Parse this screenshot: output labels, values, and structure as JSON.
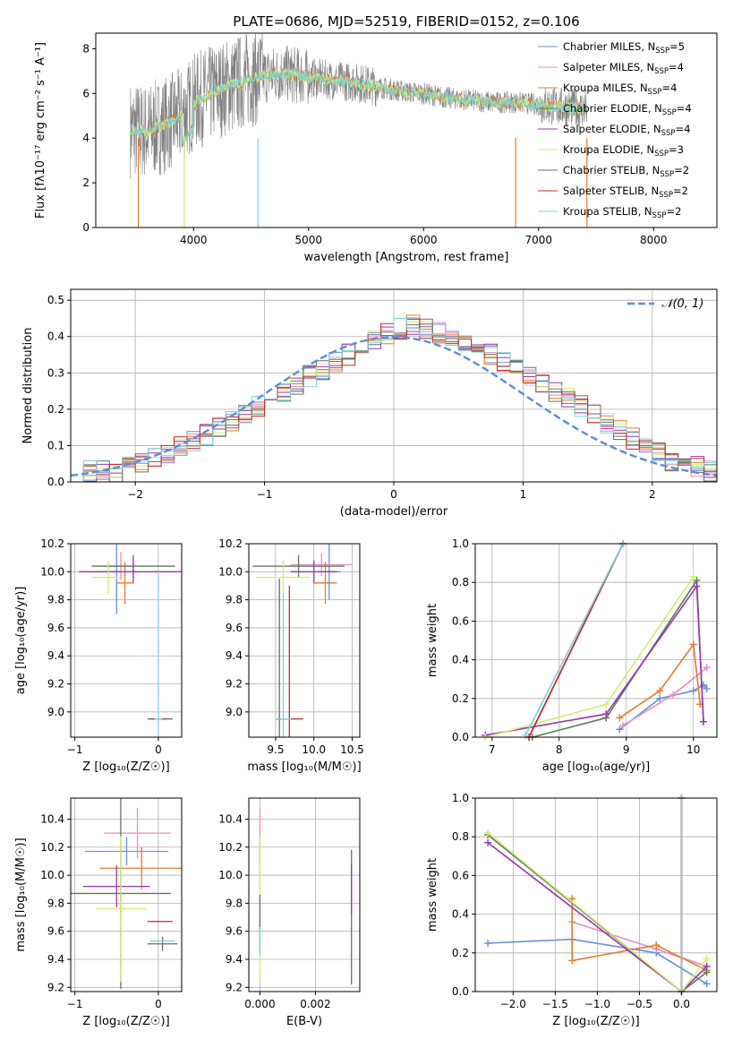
{
  "colors": {
    "chabrier_miles": "#6a8fd8",
    "salpeter_miles": "#e88ac8",
    "kroupa_miles": "#e77a2a",
    "chabrier_elodie": "#5a7a5a",
    "salpeter_elodie": "#9a34b0",
    "kroupa_elodie": "#d4ec70",
    "chabrier_stelib": "#6b6b6b",
    "salpeter_stelib": "#c62828",
    "kroupa_stelib": "#7fd0d8",
    "normal_curve": "#5b8bd6"
  },
  "chart_data": [
    {
      "id": "spectrum",
      "type": "line",
      "title": "PLATE=0686, MJD=52519, FIBERID=0152, z=0.106",
      "xlabel": "wavelength [Angstrom, rest frame]",
      "ylabel": "Flux [fλ10⁻¹⁷ erg cm⁻² s⁻¹ A⁻¹]",
      "xlim": [
        3150,
        8550
      ],
      "ylim": [
        0,
        8.7
      ],
      "xticks": [
        "4000",
        "5000",
        "6000",
        "7000",
        "8000"
      ],
      "yticks": [
        "0",
        "2",
        "4",
        "6",
        "8"
      ],
      "legend_position": "upper-right",
      "legend": [
        {
          "base": "Chabrier MILES, N",
          "sub": "SSP",
          "tail": "=5",
          "color_key": "chabrier_miles"
        },
        {
          "base": "Salpeter MILES, N",
          "sub": "SSP",
          "tail": "=4",
          "color_key": "salpeter_miles"
        },
        {
          "base": "Kroupa MILES, N",
          "sub": "SSP",
          "tail": "=4",
          "color_key": "kroupa_miles"
        },
        {
          "base": "Chabrier ELODIE, N",
          "sub": "SSP",
          "tail": "=4",
          "color_key": "chabrier_elodie"
        },
        {
          "base": "Salpeter ELODIE, N",
          "sub": "SSP",
          "tail": "=4",
          "color_key": "salpeter_elodie"
        },
        {
          "base": "Kroupa ELODIE, N",
          "sub": "SSP",
          "tail": "=3",
          "color_key": "kroupa_elodie"
        },
        {
          "base": "Chabrier STELIB, N",
          "sub": "SSP",
          "tail": "=2",
          "color_key": "chabrier_stelib"
        },
        {
          "base": "Salpeter STELIB, N",
          "sub": "SSP",
          "tail": "=2",
          "color_key": "salpeter_stelib"
        },
        {
          "base": "Kroupa STELIB, N",
          "sub": "SSP",
          "tail": "=2",
          "color_key": "kroupa_stelib"
        }
      ],
      "continuum": [
        [
          3450,
          4.4
        ],
        [
          3600,
          4.3
        ],
        [
          3750,
          4.6
        ],
        [
          3900,
          5.0
        ],
        [
          4000,
          5.6
        ],
        [
          4200,
          6.1
        ],
        [
          4400,
          6.5
        ],
        [
          4600,
          6.8
        ],
        [
          4800,
          6.9
        ],
        [
          5000,
          6.7
        ],
        [
          5200,
          6.6
        ],
        [
          5400,
          6.5
        ],
        [
          5600,
          6.3
        ],
        [
          5800,
          6.1
        ],
        [
          6000,
          6.0
        ],
        [
          6200,
          5.8
        ],
        [
          6400,
          5.7
        ],
        [
          6600,
          5.6
        ],
        [
          6800,
          5.6
        ],
        [
          7000,
          5.5
        ],
        [
          7200,
          5.4
        ],
        [
          7400,
          5.3
        ]
      ]
    },
    {
      "id": "residual_hist",
      "type": "line",
      "xlabel": "(data-model)/error",
      "ylabel": "Normed distribution",
      "xlim": [
        -2.5,
        2.5
      ],
      "ylim": [
        0,
        0.53
      ],
      "xticks": [
        "−2",
        "−1",
        "0",
        "1",
        "2"
      ],
      "yticks": [
        "0.0",
        "0.1",
        "0.2",
        "0.3",
        "0.4",
        "0.5"
      ],
      "legend_label": "𝒩(0, 1)",
      "bin_edges_start": -2.5,
      "bin_width": 0.1,
      "hist_values": [
        0.02,
        0.03,
        0.03,
        0.03,
        0.04,
        0.05,
        0.07,
        0.08,
        0.1,
        0.11,
        0.13,
        0.15,
        0.17,
        0.19,
        0.21,
        0.23,
        0.25,
        0.27,
        0.29,
        0.31,
        0.33,
        0.35,
        0.37,
        0.39,
        0.41,
        0.42,
        0.43,
        0.42,
        0.41,
        0.4,
        0.39,
        0.37,
        0.35,
        0.33,
        0.31,
        0.29,
        0.27,
        0.25,
        0.23,
        0.21,
        0.19,
        0.16,
        0.14,
        0.12,
        0.1,
        0.08,
        0.06,
        0.05,
        0.04,
        0.03
      ]
    },
    {
      "id": "age_vs_z",
      "type": "scatter",
      "xlabel": "Z [log₁₀(Z/Z☉)]",
      "ylabel": "age  [log₁₀(age/yr)]",
      "xlim": [
        -1.05,
        0.28
      ],
      "ylim": [
        8.82,
        10.2
      ],
      "xticks": [
        "−1",
        "0"
      ],
      "xtick_values": [
        -1,
        0
      ],
      "yticks": [
        "9.0",
        "9.2",
        "9.4",
        "9.6",
        "9.8",
        "10.0",
        "10.2"
      ],
      "points": [
        {
          "x": -0.5,
          "y": 10.0,
          "xerr": 0.25,
          "yerr": 0.3,
          "color_key": "chabrier_miles"
        },
        {
          "x": -0.45,
          "y": 10.04,
          "xerr": 0.15,
          "yerr": 0.1,
          "color_key": "salpeter_miles"
        },
        {
          "x": -0.4,
          "y": 9.92,
          "xerr": 0.1,
          "yerr": 0.15,
          "color_key": "kroupa_miles"
        },
        {
          "x": -0.3,
          "y": 10.04,
          "xerr": 0.5,
          "yerr": 0.08,
          "color_key": "chabrier_elodie"
        },
        {
          "x": -0.3,
          "y": 10.0,
          "xerr": 0.65,
          "yerr": 0.08,
          "color_key": "salpeter_elodie"
        },
        {
          "x": -0.6,
          "y": 9.96,
          "xerr": 0.2,
          "yerr": 0.12,
          "color_key": "kroupa_elodie"
        },
        {
          "x": 0.02,
          "y": 8.95,
          "xerr": 0.15,
          "yerr": 0.0,
          "color_key": "chabrier_stelib"
        },
        {
          "x": 0.0,
          "y": 8.95,
          "xerr": 0.1,
          "yerr": 0.0,
          "color_key": "salpeter_stelib"
        },
        {
          "x": 0.0,
          "y": 8.95,
          "xerr": 0.05,
          "yerr": 1.05,
          "color_key": "kroupa_stelib"
        }
      ]
    },
    {
      "id": "age_vs_mass",
      "type": "scatter",
      "xlabel": "mass [log₁₀(M/M☉)]",
      "xlim": [
        9.15,
        10.6
      ],
      "ylim": [
        8.82,
        10.2
      ],
      "xticks": [
        "9.5",
        "10.0",
        "10.5"
      ],
      "xtick_values": [
        9.5,
        10.0,
        10.5
      ],
      "yticks": [
        "9.0",
        "9.2",
        "9.4",
        "9.6",
        "9.8",
        "10.0",
        "10.2"
      ],
      "points": [
        {
          "x": 10.2,
          "y": 10.0,
          "xerr": 0.15,
          "yerr": 0.2,
          "color_key": "chabrier_miles"
        },
        {
          "x": 10.1,
          "y": 10.05,
          "xerr": 0.4,
          "yerr": 0.08,
          "color_key": "salpeter_miles"
        },
        {
          "x": 10.15,
          "y": 9.92,
          "xerr": 0.15,
          "yerr": 0.15,
          "color_key": "kroupa_miles"
        },
        {
          "x": 9.8,
          "y": 10.04,
          "xerr": 0.6,
          "yerr": 0.08,
          "color_key": "chabrier_elodie"
        },
        {
          "x": 10.0,
          "y": 10.0,
          "xerr": 0.3,
          "yerr": 0.08,
          "color_key": "salpeter_elodie"
        },
        {
          "x": 9.6,
          "y": 9.96,
          "xerr": 0.35,
          "yerr": 0.12,
          "color_key": "kroupa_elodie"
        },
        {
          "x": 9.55,
          "y": 8.95,
          "xerr": 0.05,
          "yerr": 1.0,
          "color_key": "chabrier_stelib"
        },
        {
          "x": 9.68,
          "y": 8.95,
          "xerr": 0.18,
          "yerr": 0.95,
          "color_key": "salpeter_stelib"
        },
        {
          "x": 9.6,
          "y": 8.95,
          "xerr": 0.1,
          "yerr": 0.9,
          "color_key": "kroupa_stelib"
        }
      ]
    },
    {
      "id": "weight_vs_age",
      "type": "line",
      "xlabel": "age  [log₁₀(age/yr)]",
      "ylabel": "mass weight",
      "xlim": [
        6.75,
        10.35
      ],
      "ylim": [
        0,
        1.0
      ],
      "xticks": [
        "7",
        "8",
        "9",
        "10"
      ],
      "xtick_values": [
        7,
        8,
        9,
        10
      ],
      "yticks": [
        "0.0",
        "0.2",
        "0.4",
        "0.6",
        "0.8",
        "1.0"
      ],
      "series": [
        {
          "color_key": "chabrier_miles",
          "x": [
            8.9,
            9.5,
            10.0,
            10.15,
            10.2
          ],
          "y": [
            0.04,
            0.2,
            0.24,
            0.27,
            0.25
          ]
        },
        {
          "color_key": "salpeter_miles",
          "x": [
            8.95,
            9.7,
            10.2
          ],
          "y": [
            0.06,
            0.22,
            0.36
          ]
        },
        {
          "color_key": "kroupa_miles",
          "x": [
            8.9,
            9.5,
            10.0,
            10.1
          ],
          "y": [
            0.1,
            0.24,
            0.48,
            0.17
          ]
        },
        {
          "color_key": "chabrier_elodie",
          "x": [
            7.6,
            8.7,
            10.05,
            10.15
          ],
          "y": [
            0.0,
            0.1,
            0.81,
            0.08
          ]
        },
        {
          "color_key": "salpeter_elodie",
          "x": [
            6.9,
            8.7,
            10.05,
            10.15
          ],
          "y": [
            0.01,
            0.12,
            0.78,
            0.08
          ]
        },
        {
          "color_key": "kroupa_elodie",
          "x": [
            6.9,
            8.7,
            10.0
          ],
          "y": [
            0.0,
            0.17,
            0.83
          ]
        },
        {
          "color_key": "chabrier_stelib",
          "x": [
            7.55,
            8.95
          ],
          "y": [
            0.0,
            1.0
          ]
        },
        {
          "color_key": "salpeter_stelib",
          "x": [
            7.55,
            8.95
          ],
          "y": [
            0.0,
            1.0
          ]
        },
        {
          "color_key": "kroupa_stelib",
          "x": [
            7.5,
            8.95
          ],
          "y": [
            0.01,
            1.0
          ]
        }
      ]
    },
    {
      "id": "mass_vs_z",
      "type": "scatter",
      "xlabel": "Z [log₁₀(Z/Z☉)]",
      "ylabel": "mass [log₁₀(M/M☉)]",
      "xlim": [
        -1.05,
        0.28
      ],
      "ylim": [
        9.17,
        10.55
      ],
      "xticks": [
        "−1",
        "0"
      ],
      "xtick_values": [
        -1,
        0
      ],
      "yticks": [
        "9.2",
        "9.4",
        "9.6",
        "9.8",
        "10.0",
        "10.2",
        "10.4"
      ],
      "points": [
        {
          "x": -0.38,
          "y": 10.17,
          "xerr": 0.5,
          "yerr": 0.1,
          "color_key": "chabrier_miles"
        },
        {
          "x": -0.25,
          "y": 10.3,
          "xerr": 0.4,
          "yerr": 0.18,
          "color_key": "salpeter_miles"
        },
        {
          "x": -0.2,
          "y": 10.05,
          "xerr": 0.5,
          "yerr": 0.15,
          "color_key": "kroupa_miles"
        },
        {
          "x": -0.45,
          "y": 9.87,
          "xerr": 0.6,
          "yerr": 0.68,
          "color_key": "chabrier_elodie"
        },
        {
          "x": -0.5,
          "y": 9.92,
          "xerr": 0.4,
          "yerr": 0.15,
          "color_key": "salpeter_elodie"
        },
        {
          "x": -0.45,
          "y": 9.76,
          "xerr": 0.3,
          "yerr": 0.52,
          "color_key": "kroupa_elodie"
        },
        {
          "x": 0.05,
          "y": 9.51,
          "xerr": 0.18,
          "yerr": 0.05,
          "color_key": "chabrier_stelib"
        },
        {
          "x": 0.02,
          "y": 9.67,
          "xerr": 0.15,
          "yerr": 0.0,
          "color_key": "salpeter_stelib"
        },
        {
          "x": 0.05,
          "y": 9.53,
          "xerr": 0.15,
          "yerr": 0.0,
          "color_key": "kroupa_stelib"
        }
      ]
    },
    {
      "id": "mass_vs_ebv",
      "type": "scatter",
      "xlabel": "E(B-V)",
      "xlim": [
        -0.0004,
        0.0036
      ],
      "ylim": [
        9.17,
        10.55
      ],
      "xticks": [
        "0.000",
        "0.002"
      ],
      "xtick_values": [
        0.0,
        0.002
      ],
      "yticks": [
        "9.2",
        "9.4",
        "9.6",
        "9.8",
        "10.0",
        "10.2",
        "10.4"
      ],
      "points": [
        {
          "x": 0.0,
          "y": 10.17,
          "xerr": 0.0,
          "yerr": 0.1,
          "color_key": "chabrier_miles"
        },
        {
          "x": 0.0,
          "y": 10.3,
          "xerr": 0.0,
          "yerr": 0.18,
          "color_key": "salpeter_miles"
        },
        {
          "x": 0.0,
          "y": 10.05,
          "xerr": 0.0,
          "yerr": 0.15,
          "color_key": "kroupa_miles"
        },
        {
          "x": 0.0033,
          "y": 9.7,
          "xerr": 0.0,
          "yerr": 0.48,
          "color_key": "chabrier_elodie"
        },
        {
          "x": 0.0033,
          "y": 9.9,
          "xerr": 0.0,
          "yerr": 0.18,
          "color_key": "salpeter_elodie"
        },
        {
          "x": 0.0,
          "y": 9.76,
          "xerr": 0.0,
          "yerr": 0.52,
          "color_key": "kroupa_elodie"
        },
        {
          "x": 0.0,
          "y": 9.66,
          "xerr": 0.0,
          "yerr": 0.2,
          "color_key": "chabrier_stelib"
        },
        {
          "x": 0.0,
          "y": 9.67,
          "xerr": 0.0,
          "yerr": 0.0,
          "color_key": "salpeter_stelib"
        },
        {
          "x": 0.0,
          "y": 9.53,
          "xerr": 0.0,
          "yerr": 0.1,
          "color_key": "kroupa_stelib"
        }
      ]
    },
    {
      "id": "weight_vs_z",
      "type": "line",
      "xlabel": "Z [log₁₀(Z/Z☉)]",
      "ylabel": "mass weight",
      "xlim": [
        -2.45,
        0.42
      ],
      "ylim": [
        0,
        1.0
      ],
      "xticks": [
        "−2.0",
        "−1.5",
        "−1.0",
        "−0.5",
        "0.0"
      ],
      "xtick_values": [
        -2.0,
        -1.5,
        -1.0,
        -0.5,
        0.0
      ],
      "yticks": [
        "0.0",
        "0.2",
        "0.4",
        "0.6",
        "0.8",
        "1.0"
      ],
      "series": [
        {
          "color_key": "chabrier_miles",
          "x": [
            -2.3,
            -1.3,
            -0.3,
            0.3
          ],
          "y": [
            0.25,
            0.27,
            0.2,
            0.04
          ]
        },
        {
          "color_key": "salpeter_miles",
          "x": [
            -1.3,
            -0.3,
            0.3
          ],
          "y": [
            0.36,
            0.22,
            0.13
          ]
        },
        {
          "color_key": "kroupa_miles",
          "x": [
            -1.3,
            -1.3,
            -0.3,
            0.3
          ],
          "y": [
            0.48,
            0.16,
            0.24,
            0.11
          ]
        },
        {
          "color_key": "chabrier_elodie",
          "x": [
            -2.3,
            0.0,
            0.3
          ],
          "y": [
            0.81,
            0.0,
            0.1
          ]
        },
        {
          "color_key": "salpeter_elodie",
          "x": [
            -2.3,
            0.0,
            0.3
          ],
          "y": [
            0.77,
            0.0,
            0.13
          ]
        },
        {
          "color_key": "kroupa_elodie",
          "x": [
            -2.3,
            0.0,
            0.3
          ],
          "y": [
            0.82,
            0.0,
            0.17
          ]
        },
        {
          "color_key": "chabrier_stelib",
          "x": [
            0.0,
            0.0
          ],
          "y": [
            0.0,
            1.0
          ]
        },
        {
          "color_key": "salpeter_stelib",
          "x": [
            0.0,
            0.0
          ],
          "y": [
            0.0,
            1.0
          ]
        },
        {
          "color_key": "kroupa_stelib",
          "x": [
            0.0,
            0.0
          ],
          "y": [
            0.0,
            1.0
          ]
        }
      ]
    }
  ]
}
